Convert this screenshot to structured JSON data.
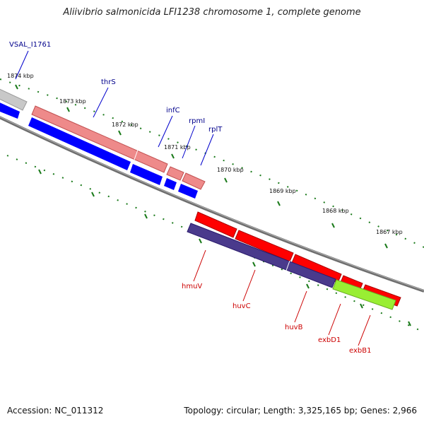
{
  "title": "Aliivibrio salmonicida LFI1238 chromosome 1, complete genome",
  "footer": {
    "accession_label": "Accession: NC_011312",
    "summary_label": "Topology: circular; Length: 3,325,165 bp; Genes: 2,966"
  },
  "colors": {
    "backbone": "#7a7a7a",
    "tick": "#1a7a1a",
    "forward_gene": "#ff0000",
    "forward_cds": "#ee7f7f",
    "reverse_gene": "#0000ff",
    "reverse_cds": "#4a3a8c",
    "other_gene": "#c8c8c8",
    "exb_gene": "#99ee33",
    "reverse_label": "#00008b",
    "forward_label": "#cc0000"
  },
  "scale_labels": [
    "1874 kbp",
    "1873 kbp",
    "1872 kbp",
    "1871 kbp",
    "1870 kbp",
    "1869 kbp",
    "1868 kbp",
    "1867 kbp"
  ],
  "genes_upper": [
    "VSAL_I1761",
    "thrS",
    "infC",
    "rpmI",
    "rplT"
  ],
  "genes_lower": [
    "hmuV",
    "huvC",
    "huvB",
    "exbD1",
    "exbB1"
  ]
}
